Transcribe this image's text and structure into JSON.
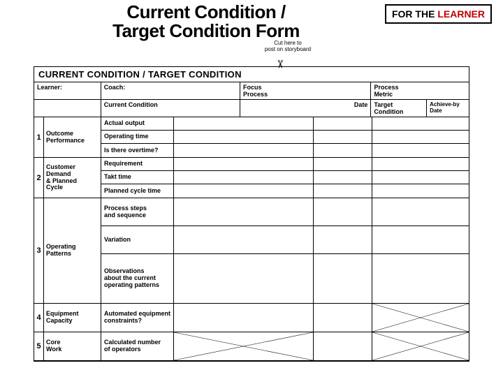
{
  "title_line1": "Current Condition /",
  "title_line2": "Target Condition Form",
  "cut_note_line1": "Cut here to",
  "cut_note_line2": "post on storyboard",
  "badge_prefix": "FOR THE ",
  "badge_highlight": "LEARNER",
  "form_title": "CURRENT CONDITION / TARGET CONDITION",
  "meta": {
    "learner": "Learner:",
    "coach": "Coach:",
    "focus": "Focus\nProcess",
    "metric": "Process\nMetric",
    "current_condition": "Current Condition",
    "date": "Date",
    "target_condition": "Target Condition",
    "achieve_by": "Achieve-by Date"
  },
  "sections": [
    {
      "num": "1",
      "title": "Outcome\nPerformance",
      "rows": [
        {
          "label": "Actual output",
          "h": "n"
        },
        {
          "label": "Operating time",
          "h": "n"
        },
        {
          "label": "Is there overtime?",
          "h": "n"
        }
      ]
    },
    {
      "num": "2",
      "title": "Customer\nDemand\n& Planned\nCycle",
      "rows": [
        {
          "label": "Requirement",
          "h": "n"
        },
        {
          "label": "Takt time",
          "h": "n"
        },
        {
          "label": "Planned cycle time",
          "h": "n"
        }
      ]
    },
    {
      "num": "3",
      "title": "Operating\nPatterns",
      "rows": [
        {
          "label": "Process steps\nand sequence",
          "h": "t"
        },
        {
          "label": "Variation",
          "h": "t"
        },
        {
          "label": "Observations\nabout the current\noperating patterns",
          "h": "v"
        }
      ]
    },
    {
      "num": "4",
      "title": "Equipment\nCapacity",
      "rows": [
        {
          "label": "Automated equipment\nconstraints?",
          "h": "t",
          "cross_tc": true
        }
      ]
    },
    {
      "num": "5",
      "title": "Core\nWork",
      "rows": [
        {
          "label": "Calculated number\nof operators",
          "h": "t",
          "cross_cc": true,
          "cross_tc": true
        }
      ]
    }
  ],
  "colors": {
    "text": "#000000",
    "accent": "#c00000",
    "border": "#000000",
    "bg": "#ffffff"
  }
}
